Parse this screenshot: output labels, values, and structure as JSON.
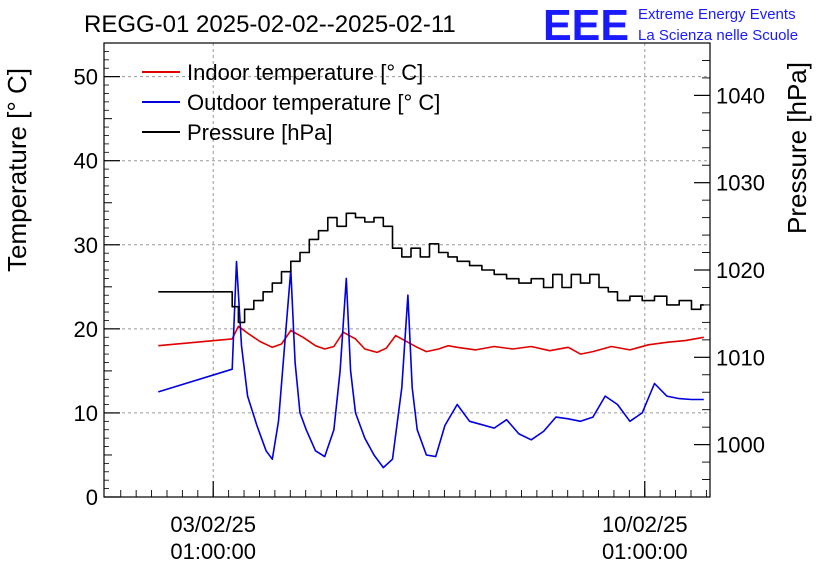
{
  "title": "REGG-01 2025-02-02--2025-02-11",
  "logo": {
    "mark": "EEE",
    "line1": "Extreme Energy Events",
    "line2": "La Scienza nelle Scuole",
    "color": "#1a1aff"
  },
  "chart_data": {
    "type": "line",
    "title": "REGG-01 2025-02-02--2025-02-11",
    "xlabel": "",
    "ylabel": "Temperature [° C]",
    "y2label": "Pressure [hPa]",
    "x_unit": "days since 2025-02-01 00:00",
    "xlim": [
      1.27,
      11.1
    ],
    "ylim": [
      0,
      54
    ],
    "y2lim": [
      994,
      1046
    ],
    "x_ticks": [
      {
        "x": 3.0417,
        "label": [
          "03/02/25",
          "01:00:00"
        ]
      },
      {
        "x": 10.0417,
        "label": [
          "10/02/25",
          "01:00:00"
        ]
      }
    ],
    "y_ticks": [
      0,
      10,
      20,
      30,
      40,
      50
    ],
    "y2_ticks": [
      1000,
      1010,
      1020,
      1030,
      1040
    ],
    "grid": true,
    "legend_position": "top-left",
    "series": [
      {
        "name": "Indoor temperature [° C]",
        "color": "#e00000",
        "axis": "left",
        "x": [
          2.15,
          3.35,
          3.45,
          3.6,
          3.8,
          4.0,
          4.15,
          4.3,
          4.5,
          4.7,
          4.85,
          5.0,
          5.15,
          5.35,
          5.5,
          5.7,
          5.85,
          6.0,
          6.15,
          6.35,
          6.5,
          6.7,
          6.85,
          7.0,
          7.3,
          7.6,
          7.9,
          8.2,
          8.5,
          8.8,
          9.0,
          9.2,
          9.5,
          9.8,
          10.1,
          10.4,
          10.7,
          11.0
        ],
        "y": [
          18.0,
          18.8,
          20.3,
          19.5,
          18.5,
          17.8,
          18.2,
          19.8,
          19.0,
          18.0,
          17.6,
          17.9,
          19.6,
          18.8,
          17.6,
          17.2,
          17.7,
          19.2,
          18.6,
          17.8,
          17.3,
          17.6,
          18.0,
          17.8,
          17.5,
          17.9,
          17.6,
          17.9,
          17.4,
          17.8,
          17.0,
          17.3,
          17.9,
          17.5,
          18.1,
          18.4,
          18.6,
          19.0
        ]
      },
      {
        "name": "Outdoor temperature [° C]",
        "color": "#0000e0",
        "axis": "left",
        "x": [
          2.15,
          3.35,
          3.42,
          3.5,
          3.6,
          3.75,
          3.9,
          4.0,
          4.1,
          4.2,
          4.3,
          4.37,
          4.45,
          4.55,
          4.7,
          4.85,
          5.0,
          5.1,
          5.2,
          5.27,
          5.35,
          5.5,
          5.65,
          5.8,
          5.95,
          6.1,
          6.2,
          6.27,
          6.35,
          6.5,
          6.65,
          6.8,
          7.0,
          7.2,
          7.4,
          7.6,
          7.8,
          8.0,
          8.2,
          8.4,
          8.6,
          8.8,
          9.0,
          9.2,
          9.4,
          9.6,
          9.8,
          10.0,
          10.2,
          10.4,
          10.6,
          10.8,
          10.95,
          11.0
        ],
        "y": [
          12.5,
          15.2,
          28.0,
          18.0,
          12.0,
          8.5,
          5.5,
          4.5,
          9.0,
          18.0,
          27.0,
          16.0,
          10.0,
          8.0,
          5.5,
          4.8,
          8.0,
          15.0,
          26.0,
          15.0,
          10.0,
          7.0,
          5.0,
          3.5,
          4.5,
          13.0,
          24.0,
          13.0,
          8.0,
          5.0,
          4.8,
          8.5,
          11.0,
          9.0,
          8.6,
          8.2,
          9.2,
          7.5,
          6.8,
          7.8,
          9.5,
          9.3,
          9.0,
          9.5,
          12.0,
          11.0,
          9.0,
          10.0,
          13.5,
          12.0,
          11.7,
          11.6,
          11.6,
          11.6
        ]
      },
      {
        "name": "Pressure [hPa]",
        "color": "#000000",
        "axis": "right",
        "x": [
          2.15,
          3.35,
          3.45,
          3.55,
          3.7,
          3.85,
          4.0,
          4.15,
          4.3,
          4.45,
          4.6,
          4.75,
          4.9,
          5.05,
          5.2,
          5.35,
          5.5,
          5.65,
          5.8,
          5.95,
          6.1,
          6.25,
          6.4,
          6.55,
          6.7,
          6.85,
          7.0,
          7.2,
          7.4,
          7.6,
          7.8,
          8.0,
          8.2,
          8.4,
          8.55,
          8.7,
          8.85,
          9.0,
          9.15,
          9.3,
          9.45,
          9.6,
          9.8,
          10.0,
          10.2,
          10.4,
          10.6,
          10.8,
          10.95,
          11.0
        ],
        "y": [
          1017.5,
          1015.8,
          1014.0,
          1015.5,
          1016.5,
          1017.5,
          1018.5,
          1019.8,
          1021.0,
          1022.0,
          1023.5,
          1024.5,
          1026.0,
          1025.0,
          1026.5,
          1026.0,
          1025.5,
          1026.0,
          1025.0,
          1022.5,
          1021.5,
          1022.5,
          1021.5,
          1023.0,
          1022.0,
          1021.5,
          1021.0,
          1020.5,
          1020.0,
          1019.5,
          1019.0,
          1018.5,
          1019.0,
          1018.0,
          1019.5,
          1018.0,
          1019.5,
          1018.5,
          1019.5,
          1018.0,
          1017.5,
          1016.5,
          1017.0,
          1016.5,
          1017.0,
          1016.0,
          1016.5,
          1015.5,
          1016.0,
          1016.0
        ]
      }
    ]
  }
}
